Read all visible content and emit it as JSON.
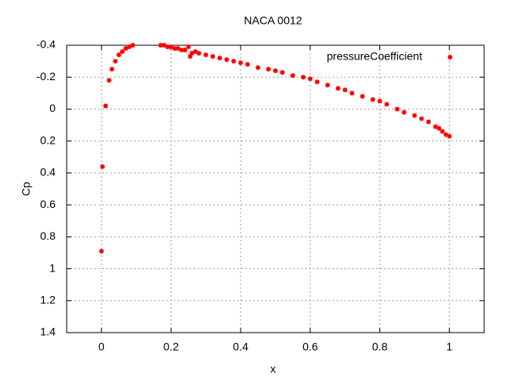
{
  "chart_data": {
    "type": "scatter",
    "title": "NACA 0012",
    "x_label": "x",
    "y_label": "Cp",
    "xlim": [
      -0.1,
      1.1
    ],
    "xticks": [
      0,
      0.2,
      0.4,
      0.6,
      0.8,
      1
    ],
    "ylim": [
      1.4,
      -0.4
    ],
    "yticks": [
      -0.4,
      -0.2,
      0,
      0.2,
      0.4,
      0.6,
      0.8,
      1,
      1.2,
      1.4
    ],
    "grid": true,
    "legend": "top-right",
    "series": [
      {
        "name": "pressureCoefficient",
        "color": "#ff0000",
        "x": [
          0,
          0.003,
          0.012,
          0.022,
          0.03,
          0.04,
          0.05,
          0.06,
          0.07,
          0.08,
          0.09,
          0.17,
          0.18,
          0.19,
          0.2,
          0.21,
          0.22,
          0.23,
          0.24,
          0.25,
          0.255,
          0.26,
          0.27,
          0.28,
          0.3,
          0.32,
          0.34,
          0.36,
          0.38,
          0.4,
          0.42,
          0.45,
          0.48,
          0.5,
          0.52,
          0.55,
          0.58,
          0.6,
          0.62,
          0.65,
          0.68,
          0.7,
          0.72,
          0.75,
          0.78,
          0.8,
          0.82,
          0.85,
          0.87,
          0.9,
          0.92,
          0.94,
          0.96,
          0.97,
          0.98,
          0.99,
          1.0
        ],
        "values": [
          0.89,
          0.36,
          -0.02,
          -0.18,
          -0.25,
          -0.3,
          -0.34,
          -0.36,
          -0.38,
          -0.39,
          -0.4,
          -0.4,
          -0.4,
          -0.39,
          -0.39,
          -0.38,
          -0.38,
          -0.37,
          -0.37,
          -0.39,
          -0.33,
          -0.35,
          -0.36,
          -0.35,
          -0.34,
          -0.33,
          -0.32,
          -0.31,
          -0.3,
          -0.29,
          -0.28,
          -0.26,
          -0.25,
          -0.24,
          -0.23,
          -0.21,
          -0.2,
          -0.19,
          -0.17,
          -0.15,
          -0.13,
          -0.12,
          -0.1,
          -0.08,
          -0.06,
          -0.05,
          -0.03,
          0.0,
          0.02,
          0.04,
          0.06,
          0.08,
          0.11,
          0.12,
          0.14,
          0.16,
          0.17
        ]
      }
    ]
  }
}
